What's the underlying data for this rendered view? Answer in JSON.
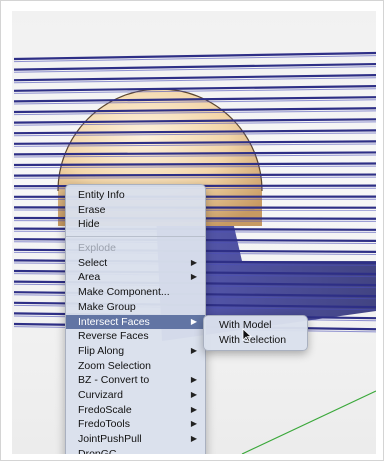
{
  "context_menu": {
    "items": [
      {
        "label": "Entity Info"
      },
      {
        "label": "Erase"
      },
      {
        "label": "Hide"
      },
      {
        "label": "Explode",
        "disabled": true
      },
      {
        "label": "Select",
        "submenu": true
      },
      {
        "label": "Area",
        "submenu": true
      },
      {
        "label": "Make Component..."
      },
      {
        "label": "Make Group"
      },
      {
        "label": "Intersect Faces",
        "submenu": true,
        "selected": true
      },
      {
        "label": "Reverse Faces"
      },
      {
        "label": "Flip Along",
        "submenu": true
      },
      {
        "label": "Zoom Selection"
      },
      {
        "label": "BZ - Convert to",
        "submenu": true
      },
      {
        "label": "Curvizard",
        "submenu": true
      },
      {
        "label": "FredoScale",
        "submenu": true
      },
      {
        "label": "FredoTools",
        "submenu": true
      },
      {
        "label": "JointPushPull",
        "submenu": true
      },
      {
        "label": "DropGC"
      }
    ],
    "arrow_glyph": "▶"
  },
  "submenu": {
    "items": [
      {
        "label": "With Model"
      },
      {
        "label": "With Selection"
      }
    ]
  },
  "colors": {
    "slab_edge": "#2e2f86",
    "slab_face": "#4c4fb8",
    "sphere_light": "#fbe8c8",
    "sphere_dark": "#c79a62",
    "menu_bg": "#dae0ec",
    "menu_highlight": "#6275a4",
    "axis_green": "#3aa83a"
  }
}
